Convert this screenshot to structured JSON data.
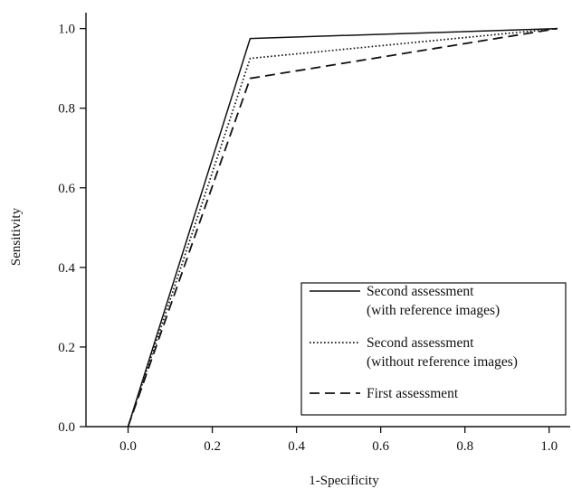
{
  "chart_data": {
    "type": "line",
    "title": "",
    "xlabel": "1-Specificity",
    "ylabel": "Sensitivity",
    "xlim": [
      -0.1,
      1.05
    ],
    "ylim": [
      0.0,
      1.04
    ],
    "xticks": [
      0.0,
      0.2,
      0.4,
      0.6,
      0.8,
      1.0
    ],
    "yticks": [
      0.0,
      0.2,
      0.4,
      0.6,
      0.8,
      1.0
    ],
    "tick_format_decimals": 1,
    "grid": false,
    "legend": "bottom-right",
    "series": [
      {
        "name": "Second assessment (with reference images)",
        "legend_lines": [
          "Second assessment",
          "(with reference images)"
        ],
        "style": "solid",
        "points": [
          [
            0.0,
            0.0
          ],
          [
            0.29,
            0.975
          ],
          [
            1.02,
            1.0
          ]
        ]
      },
      {
        "name": "Second assessment (without reference images)",
        "legend_lines": [
          "Second assessment",
          "(without reference images)"
        ],
        "style": "dotted",
        "points": [
          [
            0.0,
            0.0
          ],
          [
            0.29,
            0.925
          ],
          [
            1.02,
            1.0
          ]
        ]
      },
      {
        "name": "First assessment",
        "legend_lines": [
          "First assessment"
        ],
        "style": "dashed",
        "points": [
          [
            0.0,
            0.0
          ],
          [
            0.29,
            0.875
          ],
          [
            1.02,
            1.0
          ]
        ]
      }
    ]
  },
  "colors": {
    "line": "#111111",
    "axis": "#111111",
    "background": "#ffffff"
  }
}
